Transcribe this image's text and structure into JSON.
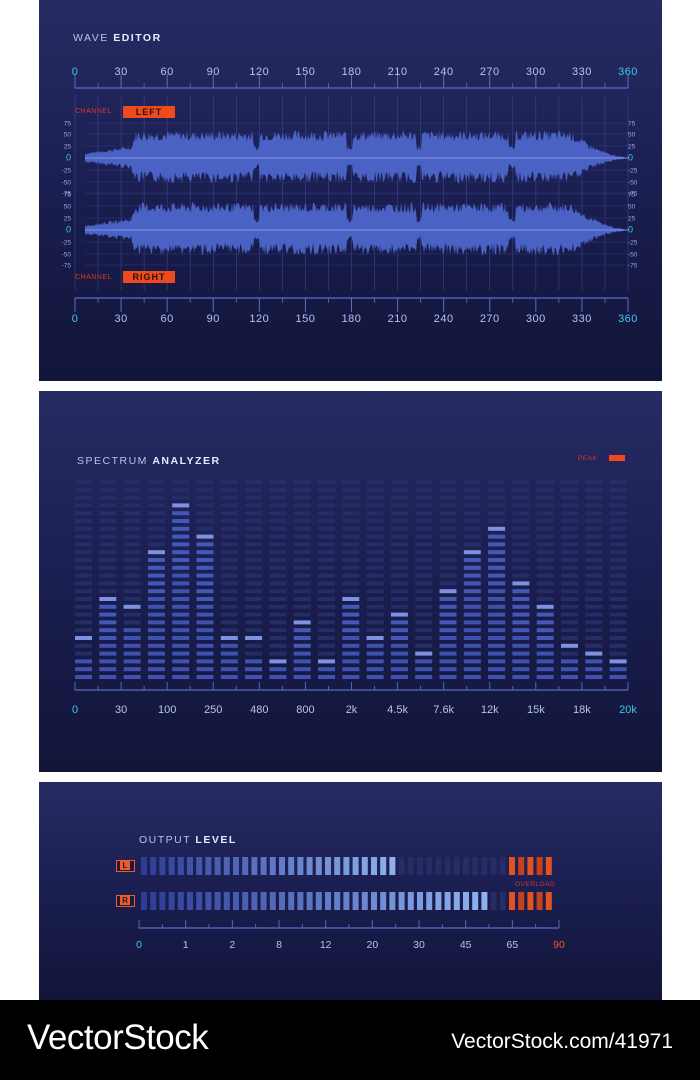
{
  "wave_editor": {
    "title_light": "WAVE",
    "title_bold": "EDITOR",
    "time_ticks": [
      "0",
      "30",
      "60",
      "90",
      "120",
      "150",
      "180",
      "210",
      "240",
      "270",
      "300",
      "330",
      "360"
    ],
    "channel_label": "CHANNEL",
    "left_channel": "LEFT",
    "right_channel": "RIGHT",
    "amplitude_ticks": [
      "75",
      "50",
      "25",
      "0",
      "-25",
      "-50",
      "-75"
    ],
    "accent_color": "#38c8f0",
    "waveform_color": "#5068c8"
  },
  "spectrum_analyzer": {
    "title_light": "SPECTRUM",
    "title_bold": "ANALYZER",
    "peak_label": "PEAK",
    "frequency_ticks": [
      "0",
      "30",
      "100",
      "250",
      "480",
      "800",
      "2k",
      "4.5k",
      "7.6k",
      "12k",
      "15k",
      "18k",
      "20k"
    ],
    "band_levels": [
      3,
      5,
      7,
      11,
      14,
      10,
      5,
      3,
      3,
      4,
      3,
      6,
      5,
      5,
      4,
      6,
      11,
      12,
      6,
      5,
      3,
      3,
      2
    ],
    "band_peaks": [
      6,
      11,
      10,
      17,
      23,
      19,
      6,
      6,
      3,
      8,
      3,
      11,
      6,
      9,
      4,
      12,
      17,
      20,
      13,
      10,
      5,
      4,
      3
    ],
    "segments_per_band": 26,
    "peak_color": "#ef4a1f"
  },
  "output_level": {
    "title_light": "OUTPUT",
    "title_bold": "LEVEL",
    "left_label": "L",
    "right_label": "R",
    "overload_label": "OVERLOAD",
    "left_level": 0.62,
    "right_level": 0.84,
    "overload_start": 0.88,
    "scale_ticks": [
      "0",
      "1",
      "2",
      "8",
      "12",
      "20",
      "30",
      "45",
      "65",
      "90"
    ]
  },
  "footer": {
    "brand": "VectorStock",
    "url": "VectorStock.com/41971"
  }
}
